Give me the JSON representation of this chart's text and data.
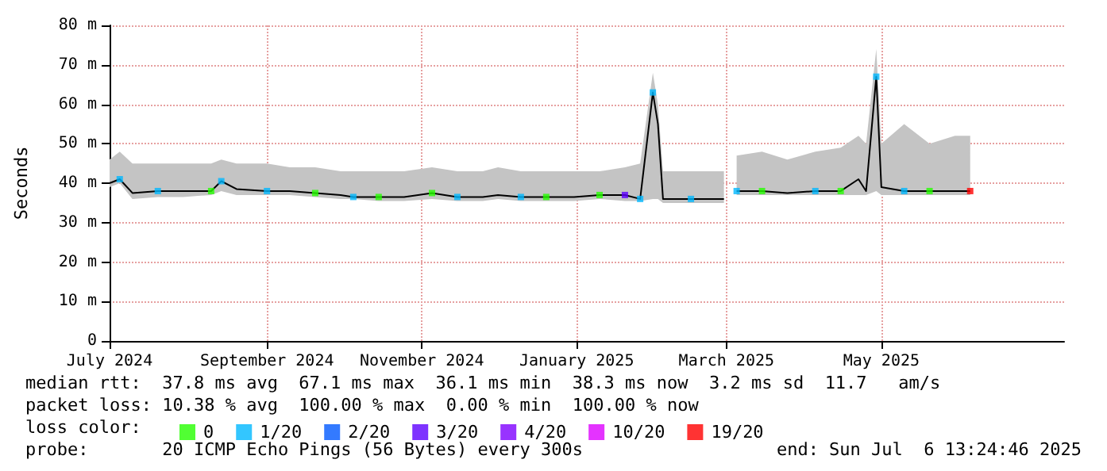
{
  "chart_data": {
    "type": "line",
    "ylabel": "Seconds",
    "legend_title": "loss color:",
    "legend": "bottom",
    "grid": true,
    "xlim": [
      "2024-07-01",
      "2025-07-12"
    ],
    "xticks": [
      {
        "value": "2024-07-01",
        "label": "July 2024"
      },
      {
        "value": "2024-09-01",
        "label": "September 2024"
      },
      {
        "value": "2024-11-01",
        "label": "November 2024"
      },
      {
        "value": "2025-01-01",
        "label": "January 2025"
      },
      {
        "value": "2025-03-01",
        "label": "March 2025"
      },
      {
        "value": "2025-05-01",
        "label": "May 2025"
      }
    ],
    "ylim": [
      0,
      80
    ],
    "yticks": [
      0,
      {
        "value": 10,
        "label": "10 m"
      },
      {
        "value": 20,
        "label": "20 m"
      },
      {
        "value": 30,
        "label": "30 m"
      },
      {
        "value": 40,
        "label": "40 m"
      },
      {
        "value": 50,
        "label": "50 m"
      },
      {
        "value": 60,
        "label": "60 m"
      },
      {
        "value": 70,
        "label": "70 m"
      },
      {
        "value": 80,
        "label": "80 m"
      }
    ],
    "series": [
      {
        "color": "#000000",
        "x": [
          "2024-07-01",
          "2024-07-05",
          "2024-07-10",
          "2024-07-20",
          "2024-07-30",
          "2024-08-10",
          "2024-08-14",
          "2024-08-20",
          "2024-09-01",
          "2024-09-10",
          "2024-09-20",
          "2024-09-30",
          "2024-10-05",
          "2024-10-15",
          "2024-10-25",
          "2024-11-05",
          "2024-11-15",
          "2024-11-25",
          "2024-12-01",
          "2024-12-10",
          "2024-12-20",
          "2024-12-31",
          "2025-01-10",
          "2025-01-20",
          "2025-01-26",
          "2025-01-31",
          "2025-02-02",
          "2025-02-04",
          "2025-02-15",
          "2025-02-28",
          "2025-03-02",
          "2025-03-05",
          "2025-03-15",
          "2025-03-25",
          "2025-04-05",
          "2025-04-15",
          "2025-04-22",
          "2025-04-25",
          "2025-04-29",
          "2025-05-01",
          "2025-05-10",
          "2025-05-20",
          "2025-05-30",
          "2025-06-05"
        ],
        "values": [
          40,
          41,
          37.5,
          38,
          38,
          38,
          40.5,
          38.5,
          38,
          38,
          37.5,
          37,
          36.5,
          36.5,
          36.5,
          37.5,
          36.5,
          36.5,
          37,
          36.5,
          36.5,
          36.5,
          37,
          37,
          36,
          63,
          55,
          36,
          36,
          36,
          null,
          38,
          38,
          37.5,
          38,
          38,
          41,
          38,
          67,
          39,
          38,
          38,
          38,
          38
        ],
        "lower": [
          39,
          40,
          36,
          36.5,
          36.5,
          37,
          38,
          37,
          37,
          37,
          36.5,
          36,
          36,
          35.5,
          35.5,
          36,
          35.5,
          35.5,
          36,
          35.5,
          35.5,
          35.5,
          36,
          35.5,
          35.5,
          36,
          36,
          35,
          35,
          35,
          null,
          37,
          37,
          37,
          37,
          37,
          37,
          37,
          38,
          37,
          37,
          37,
          37,
          37
        ],
        "upper": [
          46,
          48,
          45,
          45,
          45,
          45,
          46,
          45,
          45,
          44,
          44,
          43,
          43,
          43,
          43,
          44,
          43,
          43,
          44,
          43,
          43,
          43,
          43,
          44,
          45,
          68,
          60,
          43,
          43,
          43,
          null,
          47,
          48,
          46,
          48,
          49,
          52,
          50,
          74,
          50,
          55,
          50,
          52,
          52
        ]
      },
      {
        "type": "scatter",
        "marker": "square",
        "name": "0",
        "color": "#26ff00",
        "x": [
          "2024-08-10",
          "2024-09-20",
          "2024-10-15",
          "2024-11-05",
          "2024-12-20",
          "2025-01-10",
          "2025-03-15",
          "2025-04-15",
          "2025-05-20"
        ],
        "values": [
          38,
          37.5,
          36.5,
          37.5,
          36.5,
          37,
          38,
          38,
          38
        ]
      },
      {
        "type": "scatter",
        "marker": "square",
        "name": "1/20",
        "color": "#00b8ff",
        "x": [
          "2024-07-05",
          "2024-07-20",
          "2024-08-14",
          "2024-09-01",
          "2024-10-05",
          "2024-11-15",
          "2024-12-10",
          "2025-01-26",
          "2025-01-31",
          "2025-02-15",
          "2025-03-05",
          "2025-04-05",
          "2025-04-29",
          "2025-05-10"
        ],
        "values": [
          41,
          38,
          40.5,
          38,
          36.5,
          36.5,
          36.5,
          36,
          63,
          36,
          38,
          38,
          67,
          38
        ]
      },
      {
        "type": "scatter",
        "marker": "square",
        "name": "2/20",
        "color": "#0059ff"
      },
      {
        "type": "scatter",
        "marker": "square",
        "name": "3/20",
        "color": "#5e00ff",
        "x": [
          "2025-01-20"
        ],
        "values": [
          37
        ]
      },
      {
        "type": "scatter",
        "marker": "square",
        "name": "4/20",
        "color": "#7e00ff"
      },
      {
        "type": "scatter",
        "marker": "square",
        "name": "10/20",
        "color": "#dd00ff"
      },
      {
        "type": "scatter",
        "marker": "square",
        "name": "19/20",
        "color": "#ff0000",
        "x": [
          "2025-06-05"
        ],
        "values": [
          38
        ]
      }
    ],
    "annotations": [
      "median rtt:  37.8 ms avg  67.1 ms max  36.1 ms min  38.3 ms now  3.2 ms sd  11.7   am/s",
      "packet loss: 10.38 % avg  100.00 % max  0.00 % min  100.00 % now",
      "probe:       20 ICMP Echo Pings (56 Bytes) every 300s",
      "end: Sun Jul  6 13:24:46 2025"
    ]
  }
}
